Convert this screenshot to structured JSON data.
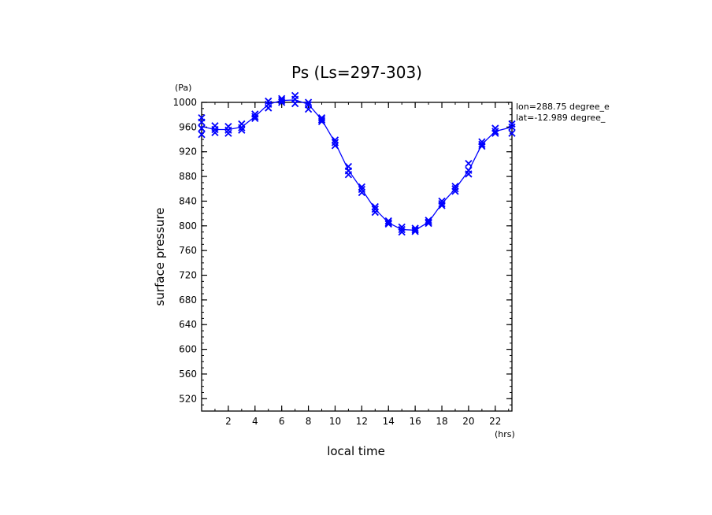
{
  "chart_data": {
    "type": "line",
    "title": "Ps (Ls=297-303)",
    "xlabel": "local time",
    "ylabel": "surface pressure",
    "x_unit": "(hrs)",
    "y_unit": "(Pa)",
    "xlim": [
      0,
      23.25
    ],
    "ylim": [
      500,
      1000
    ],
    "x_ticks": [
      2,
      4,
      6,
      8,
      10,
      12,
      14,
      16,
      18,
      20,
      22
    ],
    "y_ticks": [
      520,
      560,
      600,
      640,
      680,
      720,
      760,
      800,
      840,
      880,
      920,
      960,
      1000
    ],
    "annotations": [
      "lon=288.75 degree_e",
      "lat=-12.989 degree_"
    ],
    "color": "#0000ff",
    "series": [
      {
        "x": [
          0,
          1,
          2,
          3,
          4,
          5,
          6,
          7,
          8,
          9,
          10,
          11,
          12,
          13,
          14,
          15,
          16,
          17,
          18,
          19,
          20,
          21,
          22,
          23.25
        ],
        "values": [
          961,
          956,
          956,
          960,
          977,
          997,
          1003,
          1004,
          997,
          972,
          935,
          890,
          859,
          827,
          805,
          794,
          793,
          806,
          836,
          860,
          889,
          932,
          953,
          960
        ]
      }
    ],
    "samples": [
      {
        "x": 0,
        "y": [
          975,
          968,
          958,
          948
        ]
      },
      {
        "x": 1,
        "y": [
          962,
          956,
          951
        ]
      },
      {
        "x": 2,
        "y": [
          961,
          955,
          950
        ]
      },
      {
        "x": 3,
        "y": [
          965,
          959,
          955
        ]
      },
      {
        "x": 4,
        "y": [
          981,
          977,
          974
        ]
      },
      {
        "x": 5,
        "y": [
          1002,
          997,
          991
        ]
      },
      {
        "x": 6,
        "y": [
          1006,
          1003,
          1000
        ]
      },
      {
        "x": 7,
        "y": [
          1011,
          1005,
          998
        ]
      },
      {
        "x": 8,
        "y": [
          1000,
          996,
          989
        ]
      },
      {
        "x": 9,
        "y": [
          975,
          972,
          969
        ]
      },
      {
        "x": 10,
        "y": [
          939,
          935,
          930
        ]
      },
      {
        "x": 11,
        "y": [
          896,
          889,
          883
        ]
      },
      {
        "x": 12,
        "y": [
          863,
          859,
          854
        ]
      },
      {
        "x": 13,
        "y": [
          831,
          827,
          822
        ]
      },
      {
        "x": 14,
        "y": [
          808,
          805,
          803
        ]
      },
      {
        "x": 15,
        "y": [
          798,
          794,
          790
        ]
      },
      {
        "x": 16,
        "y": [
          796,
          793,
          791
        ]
      },
      {
        "x": 17,
        "y": [
          809,
          806,
          804
        ]
      },
      {
        "x": 18,
        "y": [
          840,
          836,
          833
        ]
      },
      {
        "x": 19,
        "y": [
          864,
          860,
          856
        ]
      },
      {
        "x": 20,
        "y": [
          901,
          890,
          884
        ]
      },
      {
        "x": 21,
        "y": [
          936,
          932,
          929
        ]
      },
      {
        "x": 22,
        "y": [
          958,
          953,
          950
        ]
      },
      {
        "x": 23.25,
        "y": [
          965,
          960,
          950
        ]
      }
    ]
  }
}
